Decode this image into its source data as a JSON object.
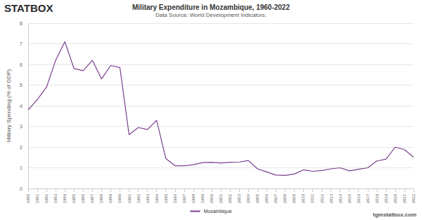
{
  "chart_data": {
    "type": "line",
    "title": "Military Expenditure in Mozambique, 1960-2022",
    "subtitle": "Data Source: World Development Indicators.",
    "y_label": "Military Spending (% of GDP)",
    "annotations": [
      "STATBOX",
      "tgmstatbox.com"
    ],
    "categories": [
      "1980",
      "1981",
      "1982",
      "1983",
      "1984",
      "1985",
      "1986",
      "1987",
      "1988",
      "1989",
      "1990",
      "1991",
      "1992",
      "1993",
      "1994",
      "1995",
      "1996",
      "1997",
      "1998",
      "1999",
      "2000",
      "2001",
      "2002",
      "2003",
      "2004",
      "2005",
      "2006",
      "2007",
      "2008",
      "2009",
      "2010",
      "2011",
      "2012",
      "2013",
      "2014",
      "2015",
      "2016",
      "2017",
      "2018",
      "2019",
      "2020",
      "2021",
      "2022"
    ],
    "series": [
      {
        "name": "Mozambique",
        "color": "#7b3f8c",
        "values": [
          3.8,
          4.3,
          4.9,
          6.2,
          7.1,
          5.8,
          5.7,
          6.2,
          5.3,
          5.95,
          5.85,
          2.6,
          2.95,
          2.85,
          3.3,
          1.45,
          1.1,
          1.1,
          1.15,
          1.25,
          1.27,
          1.23,
          1.27,
          1.28,
          1.35,
          0.95,
          0.8,
          0.65,
          0.63,
          0.7,
          0.9,
          0.83,
          0.87,
          0.95,
          1.0,
          0.85,
          0.93,
          1.0,
          1.33,
          1.42,
          2.0,
          1.88,
          1.52
        ]
      }
    ],
    "ylim": [
      0,
      8
    ],
    "yticks": [
      0,
      1,
      2,
      3,
      4,
      5,
      6,
      7,
      8
    ],
    "grid": true,
    "legend": "bottom"
  }
}
